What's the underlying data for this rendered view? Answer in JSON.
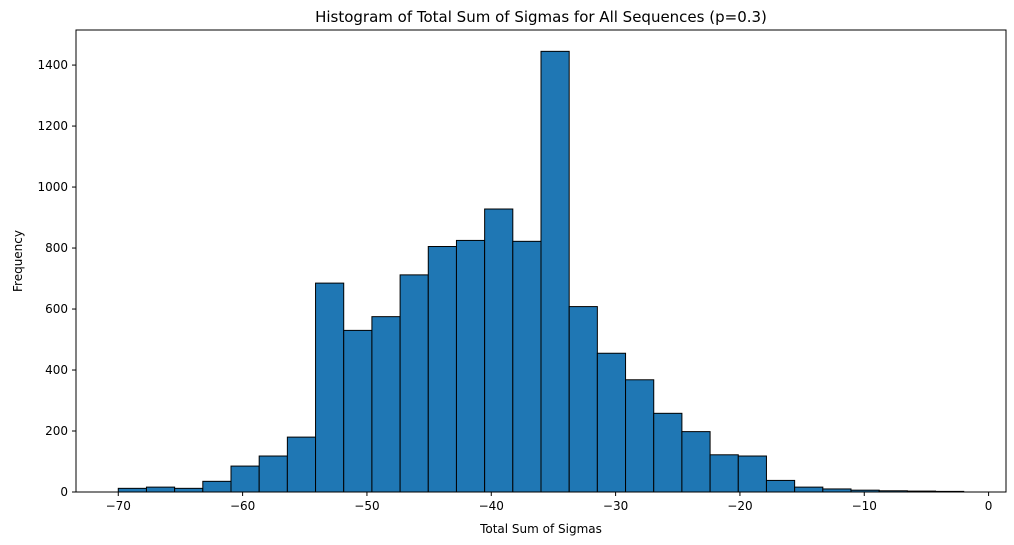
{
  "chart_data": {
    "type": "bar",
    "title": "Histogram of Total Sum of Sigmas for All Sequences (p=0.3)",
    "xlabel": "Total Sum of Sigmas",
    "ylabel": "Frequency",
    "xlim": [
      -73.4,
      1.4
    ],
    "ylim": [
      0,
      1515
    ],
    "xticks": [
      -70,
      -60,
      -50,
      -40,
      -30,
      -20,
      -10,
      0
    ],
    "xtick_labels": [
      "−70",
      "−60",
      "−50",
      "−40",
      "−30",
      "−20",
      "−10",
      "0"
    ],
    "yticks": [
      0,
      200,
      400,
      600,
      800,
      1000,
      1200,
      1400
    ],
    "ytick_labels": [
      "0",
      "200",
      "400",
      "600",
      "800",
      "1000",
      "1200",
      "1400"
    ],
    "bin_edges": [
      -70.0,
      -67.733,
      -65.467,
      -63.2,
      -60.933,
      -58.667,
      -56.4,
      -54.133,
      -51.867,
      -49.6,
      -47.333,
      -45.067,
      -42.8,
      -40.533,
      -38.267,
      -36.0,
      -33.733,
      -31.467,
      -29.2,
      -26.933,
      -24.667,
      -22.4,
      -20.133,
      -17.867,
      -15.6,
      -13.333,
      -11.067,
      -8.8,
      -6.533,
      -4.267,
      -2.0
    ],
    "values": [
      12,
      16,
      12,
      35,
      85,
      118,
      180,
      685,
      530,
      575,
      712,
      805,
      825,
      928,
      822,
      1445,
      608,
      455,
      368,
      258,
      198,
      122,
      118,
      38,
      16,
      10,
      6,
      4,
      3,
      2
    ],
    "bar_color": "#1f77b4",
    "edge_color": "#000000",
    "grid": false,
    "legend": "none"
  }
}
